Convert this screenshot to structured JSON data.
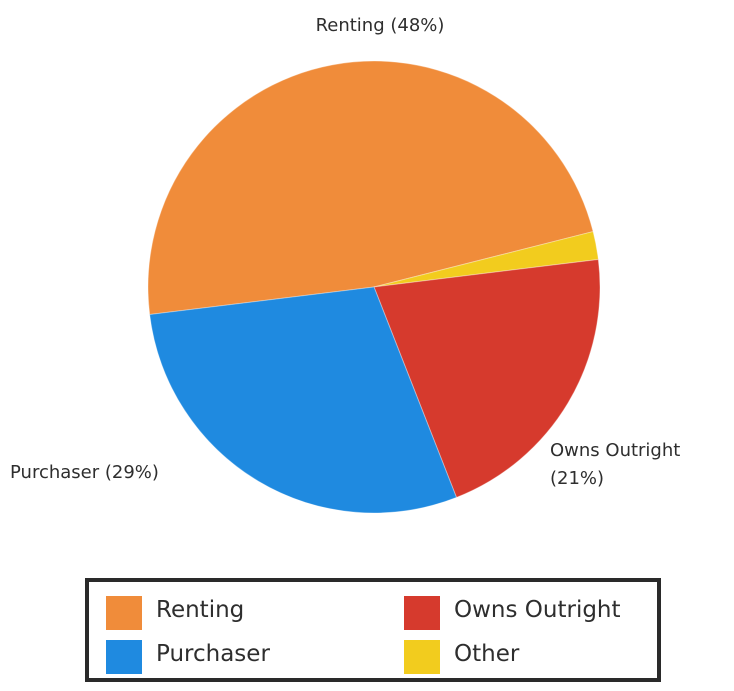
{
  "chart_data": {
    "type": "pie",
    "slices": [
      {
        "name": "Renting",
        "value": 48,
        "label": "Renting (48%)",
        "color": "#f08c3a"
      },
      {
        "name": "Other",
        "value": 2,
        "label": "",
        "color": "#f2cc1e"
      },
      {
        "name": "Owns Outright",
        "value": 21,
        "label_lines": [
          "Owns Outright",
          "(21%)"
        ],
        "color": "#d63a2d"
      },
      {
        "name": "Purchaser",
        "value": 29,
        "label": "Purchaser (29%)",
        "color": "#1f8ae0"
      }
    ],
    "legend": {
      "position": "bottom",
      "items": [
        {
          "label": "Renting",
          "color": "#f08c3a"
        },
        {
          "label": "Owns Outright",
          "color": "#d63a2d"
        },
        {
          "label": "Purchaser",
          "color": "#1f8ae0"
        },
        {
          "label": "Other",
          "color": "#f2cc1e"
        }
      ]
    }
  }
}
